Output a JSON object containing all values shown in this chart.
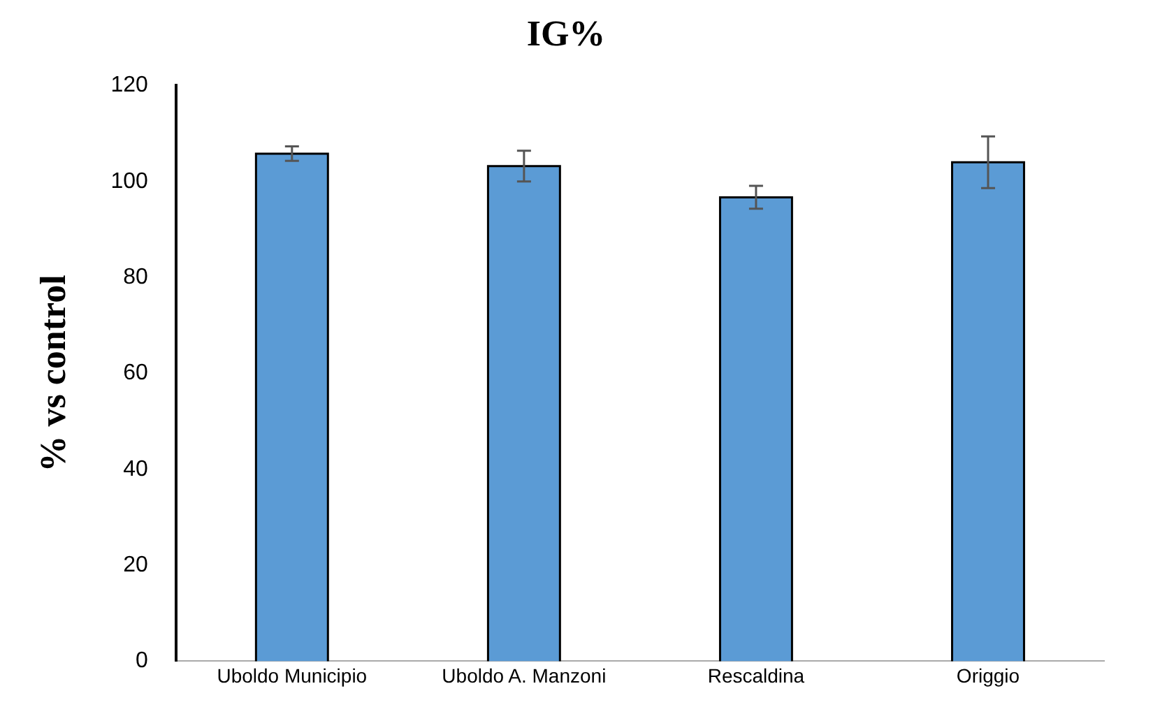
{
  "chart_data": {
    "type": "bar",
    "title": "IG%",
    "ylabel": "% vs control",
    "categories": [
      "Uboldo Municipio",
      "Uboldo A. Manzoni",
      "Rescaldina",
      "Origgio"
    ],
    "values": [
      105.8,
      103.2,
      96.7,
      104
    ],
    "errors": [
      1.5,
      3.2,
      2.4,
      5.4
    ],
    "color": "#5b9bd5",
    "ylim": [
      0,
      120
    ],
    "yticks": [
      0,
      20,
      40,
      60,
      80,
      100,
      120
    ],
    "grid": false,
    "legend": false
  }
}
